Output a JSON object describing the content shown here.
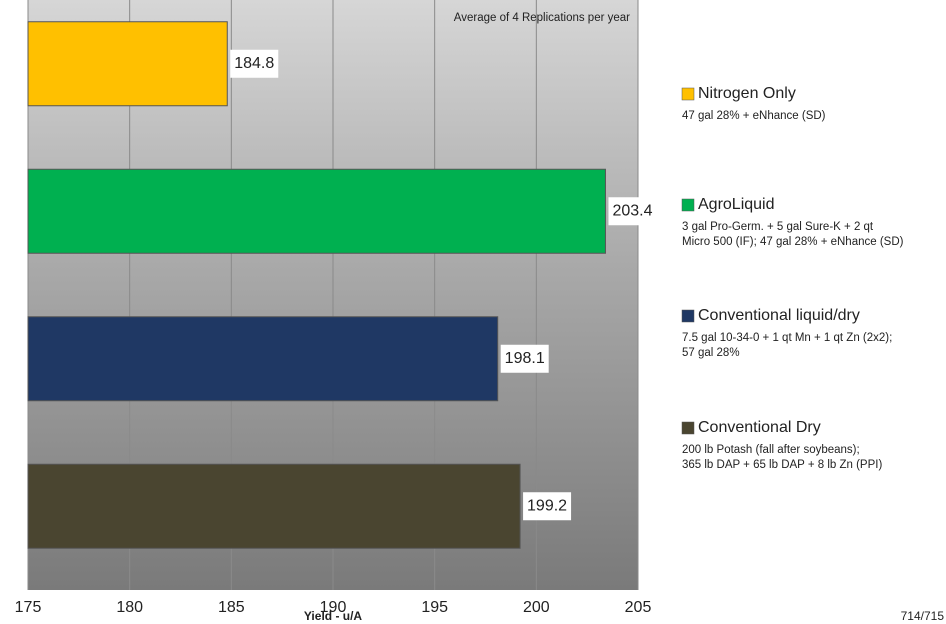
{
  "chart_data": {
    "type": "barh",
    "annotation": "Average of 4 Replications per year",
    "xlabel": "Yield - u/A",
    "footnote": "714/715",
    "categories": [
      "Nitrogen Only",
      "AgroLiquid",
      "Conventional liquid/dry",
      "Conventional Dry"
    ],
    "descriptions": [
      [
        "47 gal 28% + eNhance (SD)"
      ],
      [
        "3 gal Pro-Germ. + 5 gal Sure-K + 2 qt",
        "Micro 500 (IF); 47 gal 28% + eNhance (SD)"
      ],
      [
        "7.5 gal 10-34-0 + 1 qt Mn + 1 qt Zn (2x2);",
        "57 gal 28%"
      ],
      [
        "200 lb Potash (fall after soybeans);",
        "365 lb DAP + 65 lb DAP + 8 lb Zn (PPI)"
      ]
    ],
    "values": [
      184.8,
      203.4,
      198.1,
      199.2
    ],
    "colors": [
      "#ffc000",
      "#00b050",
      "#1f3864",
      "#4a4530"
    ],
    "xlim": [
      175,
      205
    ],
    "xticks": [
      175,
      180,
      185,
      190,
      195,
      200,
      205
    ],
    "grid": true
  }
}
